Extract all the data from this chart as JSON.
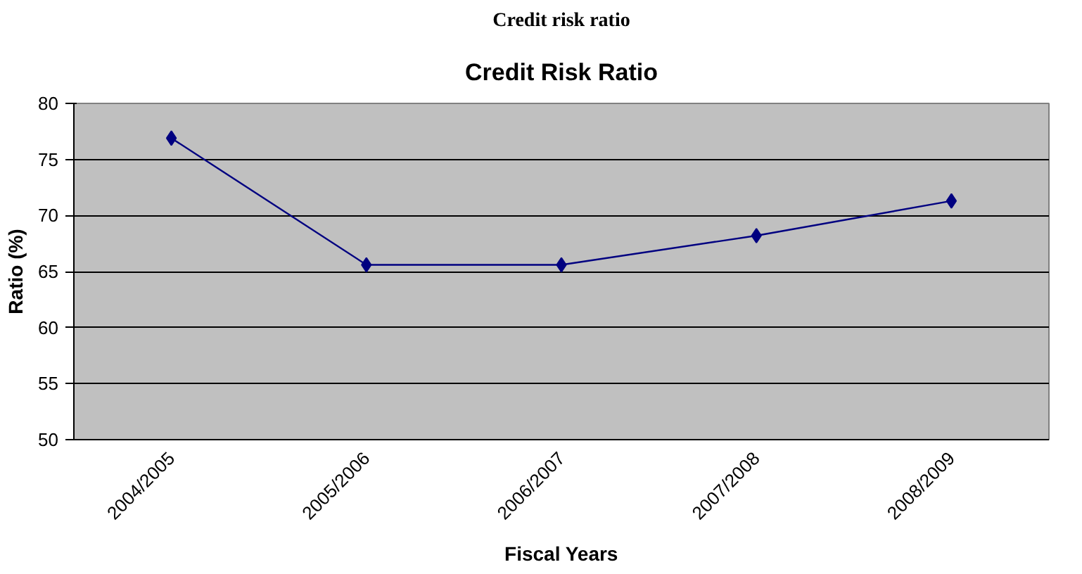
{
  "chart_data": {
    "type": "line",
    "title": "Credit Risk Ratio",
    "xlabel": "Fiscal Years",
    "ylabel": "Ratio (%)",
    "annotations": [
      "Credit risk ratio"
    ],
    "categories": [
      "2004/2005",
      "2005/2006",
      "2006/2007",
      "2007/2008",
      "2008/2009"
    ],
    "series": [
      {
        "color": "#000080",
        "values": [
          76.9,
          65.6,
          65.6,
          68.2,
          71.3
        ]
      }
    ],
    "ylim": [
      50,
      80
    ],
    "yticks": [
      50,
      55,
      60,
      65,
      70,
      75,
      80
    ],
    "grid": "y",
    "marker": "diamond",
    "line_style": "solid"
  }
}
